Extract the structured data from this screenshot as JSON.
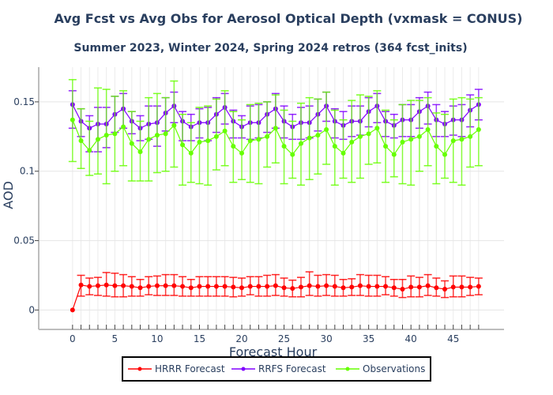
{
  "chart_data": {
    "type": "line",
    "title": "Avg Fcst vs Avg Obs for Aerosol Optical Depth (vxmask = CONUS)",
    "subtitle": "Summer 2023, Winter 2024, Spring 2024 retros (364 fcst_inits)",
    "xlabel": "Forecast Hour",
    "ylabel": "AOD",
    "xlim": [
      -4,
      51
    ],
    "ylim": [
      -0.014,
      0.175
    ],
    "xticks": [
      0,
      5,
      10,
      15,
      20,
      25,
      30,
      35,
      40,
      45
    ],
    "xtick_labels": [
      "0",
      "5",
      "10",
      "15",
      "20",
      "25",
      "30",
      "35",
      "40",
      "45"
    ],
    "yticks": [
      0,
      0.05,
      0.1,
      0.15
    ],
    "ytick_labels": [
      "0",
      "0.05",
      "0.1",
      "0.15"
    ],
    "grid": true,
    "legend_position": "bottom-center",
    "x": [
      0,
      1,
      2,
      3,
      4,
      5,
      6,
      7,
      8,
      9,
      10,
      11,
      12,
      13,
      14,
      15,
      16,
      17,
      18,
      19,
      20,
      21,
      22,
      23,
      24,
      25,
      26,
      27,
      28,
      29,
      30,
      31,
      32,
      33,
      34,
      35,
      36,
      37,
      38,
      39,
      40,
      41,
      42,
      43,
      44,
      45,
      46,
      47,
      48
    ],
    "series": [
      {
        "name": "HRRR Forecast",
        "color": "#ff0000",
        "values": [
          0.0,
          0.018,
          0.017,
          0.0175,
          0.018,
          0.0175,
          0.0175,
          0.017,
          0.016,
          0.017,
          0.0175,
          0.0175,
          0.0175,
          0.017,
          0.016,
          0.017,
          0.017,
          0.017,
          0.017,
          0.0165,
          0.016,
          0.017,
          0.017,
          0.017,
          0.0175,
          0.016,
          0.0155,
          0.0165,
          0.0175,
          0.017,
          0.0175,
          0.017,
          0.016,
          0.0165,
          0.0175,
          0.017,
          0.017,
          0.017,
          0.016,
          0.015,
          0.0165,
          0.0165,
          0.0175,
          0.016,
          0.015,
          0.0165,
          0.0165,
          0.0165,
          0.017
        ],
        "err_low": [
          0.0,
          0.008,
          0.006,
          0.007,
          0.008,
          0.008,
          0.008,
          0.007,
          0.006,
          0.006,
          0.007,
          0.007,
          0.007,
          0.007,
          0.006,
          0.007,
          0.007,
          0.007,
          0.007,
          0.007,
          0.006,
          0.006,
          0.007,
          0.007,
          0.007,
          0.006,
          0.006,
          0.007,
          0.007,
          0.007,
          0.007,
          0.007,
          0.006,
          0.006,
          0.007,
          0.007,
          0.007,
          0.006,
          0.006,
          0.006,
          0.007,
          0.007,
          0.007,
          0.006,
          0.006,
          0.007,
          0.007,
          0.006,
          0.006
        ],
        "err_high": [
          0.0,
          0.007,
          0.006,
          0.006,
          0.009,
          0.009,
          0.008,
          0.007,
          0.006,
          0.007,
          0.007,
          0.008,
          0.008,
          0.007,
          0.006,
          0.007,
          0.007,
          0.007,
          0.007,
          0.007,
          0.007,
          0.007,
          0.007,
          0.008,
          0.008,
          0.007,
          0.006,
          0.007,
          0.01,
          0.008,
          0.008,
          0.008,
          0.006,
          0.006,
          0.008,
          0.008,
          0.008,
          0.007,
          0.006,
          0.007,
          0.008,
          0.007,
          0.008,
          0.007,
          0.006,
          0.008,
          0.008,
          0.007,
          0.006
        ]
      },
      {
        "name": "RRFS Forecast",
        "color": "#8000ff",
        "values": [
          0.148,
          0.136,
          0.131,
          0.134,
          0.134,
          0.141,
          0.145,
          0.136,
          0.131,
          0.134,
          0.135,
          0.142,
          0.147,
          0.136,
          0.132,
          0.135,
          0.135,
          0.141,
          0.146,
          0.136,
          0.132,
          0.135,
          0.135,
          0.141,
          0.145,
          0.136,
          0.132,
          0.135,
          0.135,
          0.141,
          0.147,
          0.136,
          0.133,
          0.136,
          0.136,
          0.143,
          0.147,
          0.136,
          0.133,
          0.137,
          0.137,
          0.143,
          0.147,
          0.137,
          0.134,
          0.137,
          0.137,
          0.144,
          0.148
        ],
        "err_low": [
          0.017,
          0.011,
          0.017,
          0.02,
          0.017,
          0.013,
          0.014,
          0.009,
          0.009,
          0.011,
          0.017,
          0.013,
          0.012,
          0.014,
          0.01,
          0.011,
          0.013,
          0.013,
          0.012,
          0.012,
          0.008,
          0.012,
          0.011,
          0.013,
          0.014,
          0.012,
          0.009,
          0.012,
          0.011,
          0.012,
          0.011,
          0.012,
          0.01,
          0.011,
          0.01,
          0.011,
          0.012,
          0.011,
          0.009,
          0.012,
          0.012,
          0.012,
          0.013,
          0.012,
          0.009,
          0.011,
          0.012,
          0.012,
          0.011
        ],
        "err_high": [
          0.01,
          0.009,
          0.009,
          0.012,
          0.012,
          0.013,
          0.011,
          0.007,
          0.009,
          0.013,
          0.012,
          0.011,
          0.01,
          0.007,
          0.009,
          0.01,
          0.011,
          0.012,
          0.01,
          0.008,
          0.008,
          0.012,
          0.013,
          0.009,
          0.011,
          0.011,
          0.009,
          0.011,
          0.012,
          0.011,
          0.01,
          0.009,
          0.01,
          0.011,
          0.011,
          0.01,
          0.009,
          0.007,
          0.008,
          0.011,
          0.011,
          0.01,
          0.01,
          0.011,
          0.009,
          0.01,
          0.011,
          0.011,
          0.011
        ]
      },
      {
        "name": "Observations",
        "color": "#66ff00",
        "values": [
          0.137,
          0.122,
          0.115,
          0.123,
          0.126,
          0.127,
          0.132,
          0.12,
          0.114,
          0.123,
          0.126,
          0.127,
          0.133,
          0.119,
          0.113,
          0.121,
          0.122,
          0.125,
          0.129,
          0.118,
          0.113,
          0.122,
          0.123,
          0.125,
          0.131,
          0.118,
          0.112,
          0.12,
          0.124,
          0.126,
          0.13,
          0.118,
          0.113,
          0.121,
          0.125,
          0.127,
          0.131,
          0.118,
          0.112,
          0.121,
          0.123,
          0.125,
          0.13,
          0.118,
          0.112,
          0.122,
          0.123,
          0.125,
          0.13
        ],
        "err_low": [
          0.03,
          0.02,
          0.018,
          0.025,
          0.035,
          0.027,
          0.028,
          0.027,
          0.021,
          0.03,
          0.027,
          0.027,
          0.03,
          0.029,
          0.021,
          0.03,
          0.032,
          0.024,
          0.025,
          0.026,
          0.019,
          0.03,
          0.032,
          0.022,
          0.025,
          0.027,
          0.017,
          0.03,
          0.03,
          0.028,
          0.025,
          0.028,
          0.018,
          0.029,
          0.03,
          0.022,
          0.025,
          0.026,
          0.016,
          0.03,
          0.033,
          0.025,
          0.026,
          0.027,
          0.017,
          0.03,
          0.033,
          0.022,
          0.026
        ],
        "err_high": [
          0.029,
          0.023,
          0.021,
          0.037,
          0.033,
          0.027,
          0.026,
          0.023,
          0.022,
          0.03,
          0.03,
          0.026,
          0.032,
          0.022,
          0.022,
          0.025,
          0.025,
          0.027,
          0.029,
          0.025,
          0.024,
          0.026,
          0.026,
          0.025,
          0.024,
          0.026,
          0.024,
          0.029,
          0.029,
          0.026,
          0.027,
          0.026,
          0.024,
          0.03,
          0.03,
          0.027,
          0.027,
          0.026,
          0.025,
          0.027,
          0.028,
          0.026,
          0.023,
          0.024,
          0.029,
          0.03,
          0.03,
          0.027,
          0.023
        ]
      }
    ]
  }
}
